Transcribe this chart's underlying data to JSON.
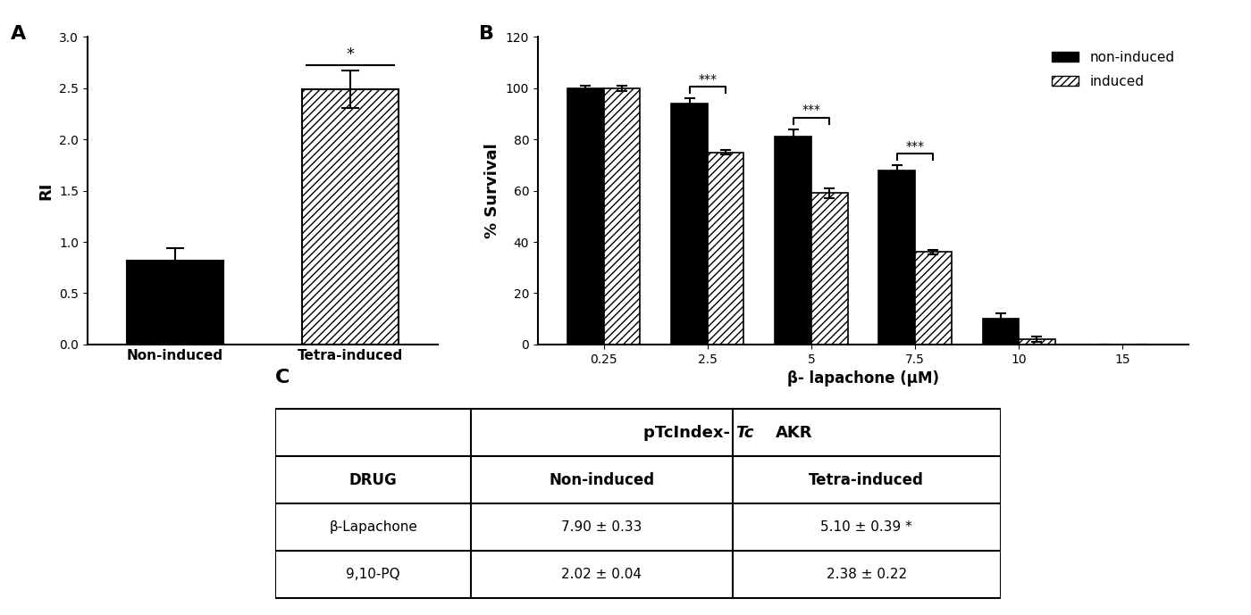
{
  "panel_A": {
    "categories": [
      "Non-induced",
      "Tetra-induced"
    ],
    "values": [
      0.82,
      2.49
    ],
    "errors": [
      0.12,
      0.18
    ],
    "hatches": [
      "",
      "////"
    ],
    "ylabel": "RI",
    "ylim": [
      0,
      3.0
    ],
    "yticks": [
      0.0,
      0.5,
      1.0,
      1.5,
      2.0,
      2.5,
      3.0
    ],
    "significance": "*"
  },
  "panel_B": {
    "x_labels": [
      "0.25",
      "2.5",
      "5",
      "7.5",
      "10",
      "15"
    ],
    "non_induced": [
      100,
      94,
      81,
      68,
      10,
      0
    ],
    "induced": [
      100,
      75,
      59,
      36,
      2,
      0
    ],
    "non_induced_err": [
      1,
      2,
      3,
      2,
      2,
      0
    ],
    "induced_err": [
      1,
      1,
      2,
      1,
      1,
      0
    ],
    "ylabel": "% Survival",
    "ylim": [
      0,
      120
    ],
    "yticks": [
      0,
      20,
      40,
      60,
      80,
      100,
      120
    ],
    "xlabel": "β- lapachone (μM)",
    "sig_indices": [
      1,
      2,
      3
    ],
    "sig_labels": [
      "***",
      "***",
      "***"
    ]
  },
  "panel_C": {
    "title_normal": "pTcIndex- ",
    "title_italic": "Tc",
    "title_normal2": "AKR",
    "col_header": [
      "DRUG",
      "Non-induced",
      "Tetra-induced"
    ],
    "rows": [
      [
        "β-Lapachone",
        "7.90 ± 0.33",
        "5.10 ± 0.39 *"
      ],
      [
        "9,10-PQ",
        "2.02 ± 0.04",
        "2.38 ± 0.22"
      ]
    ]
  },
  "background_color": "#ffffff"
}
